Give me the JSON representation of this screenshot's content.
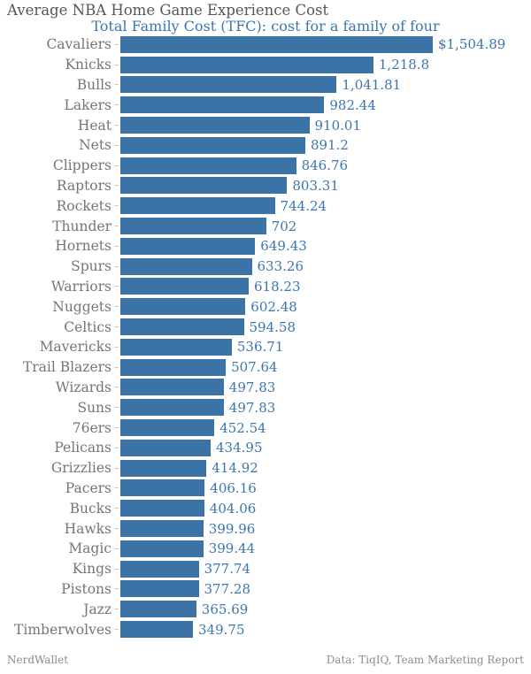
{
  "header": {
    "title": "Average NBA Home Game Experience Cost",
    "subtitle": "Total Family Cost (TFC): cost for a family of four"
  },
  "footer": {
    "left": "NerdWallet",
    "right": "Data: TiqIQ, Team Marketing Report"
  },
  "colors": {
    "bar": "#3b73a6",
    "value_label": "#3b76b0",
    "subtitle": "#3b76b0",
    "title": "#56565a",
    "category_label": "#797471",
    "tick": "#cfcac5",
    "footer_text": "#8e8b88",
    "background": "#ffffff"
  },
  "chart_data": {
    "type": "bar",
    "orientation": "horizontal",
    "sorted": "descending",
    "grid": false,
    "title": "Average NBA Home Game Experience Cost",
    "subtitle": "Total Family Cost (TFC): cost for a family of four",
    "xlabel": "",
    "ylabel": "",
    "xlim": [
      0,
      1600
    ],
    "categories": [
      "Cavaliers",
      "Knicks",
      "Bulls",
      "Lakers",
      "Heat",
      "Nets",
      "Clippers",
      "Raptors",
      "Rockets",
      "Thunder",
      "Hornets",
      "Spurs",
      "Warriors",
      "Nuggets",
      "Celtics",
      "Mavericks",
      "Trail Blazers",
      "Wizards",
      "Suns",
      "76ers",
      "Pelicans",
      "Grizzlies",
      "Pacers",
      "Bucks",
      "Hawks",
      "Magic",
      "Kings",
      "Pistons",
      "Jazz",
      "Timberwolves"
    ],
    "values": [
      1504.89,
      1218.8,
      1041.81,
      982.44,
      910.01,
      891.2,
      846.76,
      803.31,
      744.24,
      702,
      649.43,
      633.26,
      618.23,
      602.48,
      594.58,
      536.71,
      507.64,
      497.83,
      497.83,
      452.54,
      434.95,
      414.92,
      406.16,
      404.06,
      399.96,
      399.44,
      377.74,
      377.28,
      365.69,
      349.75
    ],
    "value_labels": [
      "$1,504.89",
      "1,218.8",
      "1,041.81",
      "982.44",
      "910.01",
      "891.2",
      "846.76",
      "803.31",
      "744.24",
      "702",
      "649.43",
      "633.26",
      "618.23",
      "602.48",
      "594.58",
      "536.71",
      "507.64",
      "497.83",
      "497.83",
      "452.54",
      "434.95",
      "414.92",
      "406.16",
      "404.06",
      "399.96",
      "399.44",
      "377.74",
      "377.28",
      "365.69",
      "349.75"
    ]
  }
}
